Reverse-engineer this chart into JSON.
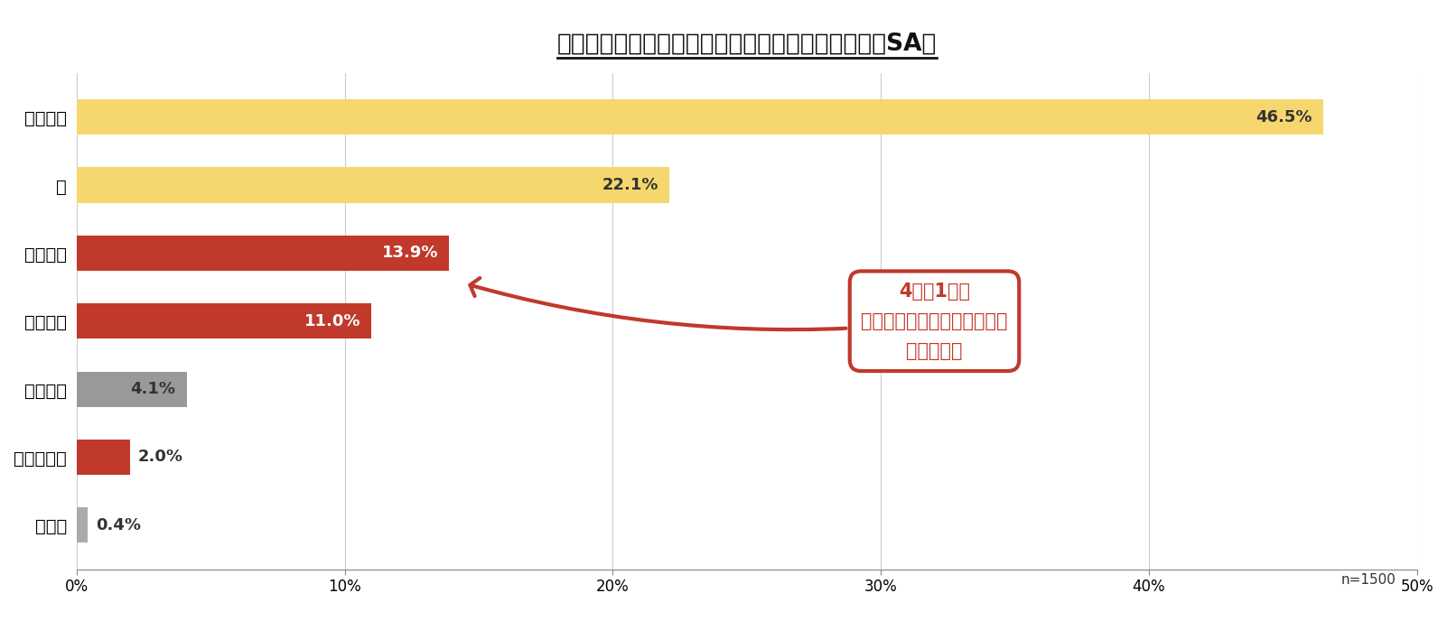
{
  "title": "最初にかけ湯をするのは体のどの部位ですか？　（SA）",
  "categories": [
    "肩から腕",
    "足",
    "腹から下",
    "首から腹",
    "顔から上",
    "背中から腰",
    "その他"
  ],
  "values": [
    46.5,
    22.1,
    13.9,
    11.0,
    4.1,
    2.0,
    0.4
  ],
  "bar_colors": [
    "#F5D76E",
    "#F5D76E",
    "#C0392B",
    "#C0392B",
    "#999999",
    "#C0392B",
    "#AAAAAA"
  ],
  "label_colors": [
    "#333333",
    "#333333",
    "#ffffff",
    "#ffffff",
    "#333333",
    "#ffffff",
    "#333333"
  ],
  "xlim": [
    0,
    50
  ],
  "xticks": [
    0,
    10,
    20,
    30,
    40,
    50
  ],
  "xtick_labels": [
    "0%",
    "10%",
    "20%",
    "30%",
    "40%",
    "50%"
  ],
  "bg_color": "#ffffff",
  "note": "n=1500",
  "callout_line1": "4人に1人が",
  "callout_line2": "「体の中心部」からのかけ湯",
  "callout_line3": "をしている",
  "title_fontsize": 19,
  "bar_height": 0.52,
  "callout_color": "#C0392B",
  "inside_label_threshold": 3.5
}
